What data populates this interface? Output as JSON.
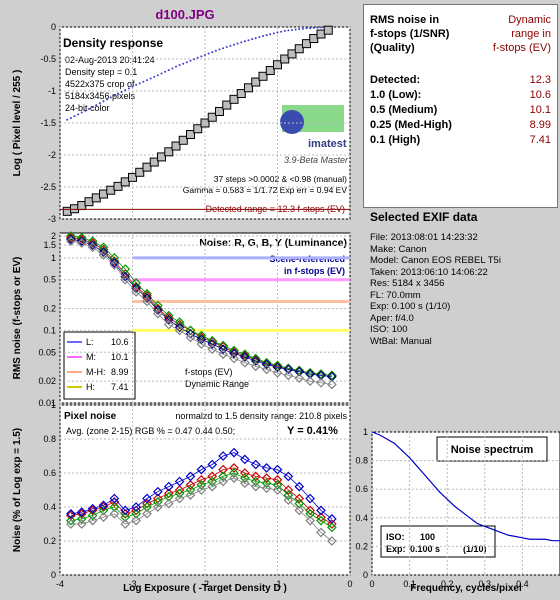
{
  "window_title": "d100.JPG",
  "colors": {
    "dark_red": "#8b0000",
    "blue": "#00008b",
    "red": "#cc0000",
    "green": "#009900",
    "gray": "#808080",
    "purple": "#800080"
  },
  "chart_data": [
    {
      "type": "line",
      "panel_title": "Density response",
      "ylabel": "Log ( Pixel level / 255 )",
      "xlim": [
        -4,
        0
      ],
      "ylim": [
        -3,
        0
      ],
      "yticks": [
        "0",
        "-0.5",
        "-1",
        "-1.5",
        "-2",
        "-2.5",
        "-3"
      ],
      "info_lines": [
        "02-Aug-2013 20:41:24",
        "Density step = 0.1",
        "4522x375 crop of",
        "5184x3456 pixels",
        "24-bit color"
      ],
      "logo_text": "imatest",
      "version_text": "3.9-Beta  Master",
      "stats_lines": [
        "37 steps >0.0002 & <0.98 (manual)",
        "Gamma = 0.583 = 1/1.72  Exp err = 0.94 EV"
      ],
      "detected_text": "Detected range = 12.3 f-stops (EV)",
      "series": [
        {
          "name": "density",
          "x": [
            -3.9,
            -3.8,
            -3.7,
            -3.6,
            -3.5,
            -3.4,
            -3.3,
            -3.2,
            -3.1,
            -3.0,
            -2.9,
            -2.8,
            -2.7,
            -2.6,
            -2.5,
            -2.4,
            -2.3,
            -2.2,
            -2.1,
            -2.0,
            -1.9,
            -1.8,
            -1.7,
            -1.6,
            -1.5,
            -1.4,
            -1.3,
            -1.2,
            -1.1,
            -1.0,
            -0.9,
            -0.8,
            -0.7,
            -0.6,
            -0.5,
            -0.4,
            -0.3
          ],
          "y": [
            -2.88,
            -2.84,
            -2.79,
            -2.73,
            -2.67,
            -2.61,
            -2.55,
            -2.49,
            -2.42,
            -2.35,
            -2.27,
            -2.19,
            -2.11,
            -2.03,
            -1.95,
            -1.86,
            -1.77,
            -1.68,
            -1.59,
            -1.5,
            -1.41,
            -1.32,
            -1.22,
            -1.13,
            -1.04,
            -0.95,
            -0.86,
            -0.77,
            -0.68,
            -0.59,
            -0.5,
            -0.42,
            -0.34,
            -0.26,
            -0.18,
            -0.11,
            -0.05
          ]
        },
        {
          "name": "reference",
          "x": [
            -3.9,
            -3.6,
            -3.3,
            -3.0,
            -2.7,
            -2.4,
            -2.1,
            -1.8,
            -1.5,
            -1.2,
            -0.9,
            -0.6,
            -0.3
          ],
          "y": [
            -1.45,
            -1.28,
            -1.1,
            -0.93,
            -0.78,
            -0.62,
            -0.48,
            -0.35,
            -0.24,
            -0.14,
            -0.06,
            -0.02,
            0
          ]
        }
      ]
    },
    {
      "type": "line",
      "panel_title": "Noise: R, G, B, Y (Luminance)",
      "ylabel": "RMS noise (f-stops or EV)",
      "xlim": [
        -4,
        0
      ],
      "yticks": [
        "2",
        "1.5",
        "1",
        "0.5",
        "0.2",
        "0.1",
        "0.05",
        "0.02",
        "0.01"
      ],
      "scene_label_1": "Scene-referenced",
      "scene_label_2": "in f-stops (EV)",
      "legend_items": [
        {
          "label": "L:",
          "value": "10.6",
          "color": "#6a6aff"
        },
        {
          "label": "M:",
          "value": "10.1",
          "color": "#ff66ff"
        },
        {
          "label": "M-H:",
          "value": "8.99",
          "color": "#ffaa80"
        },
        {
          "label": "H:",
          "value": "7.41",
          "color": "#cccc00"
        }
      ],
      "ref_lines": [
        {
          "value": 1.0,
          "color": "#aab0ff"
        },
        {
          "value": 0.5,
          "color": "#ff99ff"
        },
        {
          "value": 0.25,
          "color": "#ffc0a0"
        },
        {
          "value": 0.1,
          "color": "#ffff66"
        }
      ],
      "footer_1": "f-stops (EV)",
      "footer_2": "Dynamic Range",
      "series": [
        {
          "name": "R",
          "x": [
            -3.85,
            -3.7,
            -3.55,
            -3.4,
            -3.25,
            -3.1,
            -2.95,
            -2.8,
            -2.65,
            -2.5,
            -2.35,
            -2.2,
            -2.05,
            -1.9,
            -1.75,
            -1.6,
            -1.45,
            -1.3,
            -1.15,
            -1.0,
            -0.85,
            -0.7,
            -0.55,
            -0.4,
            -0.25
          ],
          "y": [
            1.9,
            1.8,
            1.6,
            1.3,
            0.9,
            0.6,
            0.4,
            0.3,
            0.2,
            0.15,
            0.12,
            0.1,
            0.08,
            0.07,
            0.06,
            0.05,
            0.045,
            0.04,
            0.035,
            0.032,
            0.03,
            0.028,
            0.026,
            0.025,
            0.024
          ]
        },
        {
          "name": "G",
          "x": [
            -3.85,
            -3.7,
            -3.55,
            -3.4,
            -3.25,
            -3.1,
            -2.95,
            -2.8,
            -2.65,
            -2.5,
            -2.35,
            -2.2,
            -2.05,
            -1.9,
            -1.75,
            -1.6,
            -1.45,
            -1.3,
            -1.15,
            -1.0,
            -0.85,
            -0.7,
            -0.55,
            -0.4,
            -0.25
          ],
          "y": [
            2.0,
            1.9,
            1.7,
            1.4,
            1.0,
            0.7,
            0.45,
            0.32,
            0.22,
            0.16,
            0.13,
            0.1,
            0.085,
            0.072,
            0.062,
            0.053,
            0.047,
            0.041,
            0.036,
            0.033,
            0.03,
            0.028,
            0.026,
            0.025,
            0.024
          ]
        },
        {
          "name": "B",
          "x": [
            -3.85,
            -3.7,
            -3.55,
            -3.4,
            -3.25,
            -3.1,
            -2.95,
            -2.8,
            -2.65,
            -2.5,
            -2.35,
            -2.2,
            -2.05,
            -1.9,
            -1.75,
            -1.6,
            -1.45,
            -1.3,
            -1.15,
            -1.0,
            -0.85,
            -0.7,
            -0.55,
            -0.4,
            -0.25
          ],
          "y": [
            1.8,
            1.7,
            1.5,
            1.2,
            0.85,
            0.55,
            0.38,
            0.28,
            0.19,
            0.14,
            0.11,
            0.09,
            0.075,
            0.065,
            0.055,
            0.048,
            0.043,
            0.038,
            0.034,
            0.031,
            0.029,
            0.027,
            0.025,
            0.024,
            0.023
          ]
        },
        {
          "name": "Y",
          "x": [
            -3.85,
            -3.7,
            -3.55,
            -3.4,
            -3.25,
            -3.1,
            -2.95,
            -2.8,
            -2.65,
            -2.5,
            -2.35,
            -2.2,
            -2.05,
            -1.9,
            -1.75,
            -1.6,
            -1.45,
            -1.3,
            -1.15,
            -1.0,
            -0.85,
            -0.7,
            -0.55,
            -0.4,
            -0.25
          ],
          "y": [
            1.7,
            1.6,
            1.4,
            1.1,
            0.8,
            0.5,
            0.34,
            0.25,
            0.17,
            0.12,
            0.1,
            0.08,
            0.065,
            0.055,
            0.047,
            0.041,
            0.036,
            0.032,
            0.029,
            0.026,
            0.024,
            0.022,
            0.02,
            0.019,
            0.018
          ]
        }
      ]
    },
    {
      "type": "line",
      "panel_title": "Pixel noise",
      "subtitle": "normalzd to 1.5 density range: 210.8 pixels",
      "avg_text": "Avg. (zone 2-15) RGB % = 0.47  0.44  0.50;",
      "y_text": "Y = 0.41%",
      "ylabel": "Noise (% of Log exp = 1.5)",
      "xlabel": "Log Exposure ( -Target Density D )",
      "xlim": [
        -4,
        0
      ],
      "ylim": [
        0,
        1
      ],
      "xticks": [
        "-4",
        "-3",
        "-2",
        "-1",
        "0"
      ],
      "yticks": [
        "0",
        "0.2",
        "0.4",
        "0.6",
        "0.8",
        "1"
      ],
      "series": [
        {
          "name": "R",
          "x": [
            -3.85,
            -3.7,
            -3.55,
            -3.4,
            -3.25,
            -3.1,
            -2.95,
            -2.8,
            -2.65,
            -2.5,
            -2.35,
            -2.2,
            -2.05,
            -1.9,
            -1.75,
            -1.6,
            -1.45,
            -1.3,
            -1.15,
            -1.0,
            -0.85,
            -0.7,
            -0.55,
            -0.4,
            -0.25
          ],
          "y": [
            0.35,
            0.36,
            0.38,
            0.4,
            0.43,
            0.36,
            0.38,
            0.42,
            0.45,
            0.48,
            0.5,
            0.53,
            0.56,
            0.58,
            0.62,
            0.63,
            0.6,
            0.58,
            0.57,
            0.56,
            0.5,
            0.45,
            0.38,
            0.34,
            0.3
          ]
        },
        {
          "name": "G",
          "x": [
            -3.85,
            -3.7,
            -3.55,
            -3.4,
            -3.25,
            -3.1,
            -2.95,
            -2.8,
            -2.65,
            -2.5,
            -2.35,
            -2.2,
            -2.05,
            -1.9,
            -1.75,
            -1.6,
            -1.45,
            -1.3,
            -1.15,
            -1.0,
            -0.85,
            -0.7,
            -0.55,
            -0.4,
            -0.25
          ],
          "y": [
            0.32,
            0.33,
            0.35,
            0.38,
            0.4,
            0.34,
            0.36,
            0.4,
            0.43,
            0.46,
            0.48,
            0.5,
            0.53,
            0.55,
            0.58,
            0.6,
            0.57,
            0.55,
            0.54,
            0.53,
            0.47,
            0.42,
            0.36,
            0.32,
            0.28
          ]
        },
        {
          "name": "B",
          "x": [
            -3.85,
            -3.7,
            -3.55,
            -3.4,
            -3.25,
            -3.1,
            -2.95,
            -2.8,
            -2.65,
            -2.5,
            -2.35,
            -2.2,
            -2.05,
            -1.9,
            -1.75,
            -1.6,
            -1.45,
            -1.3,
            -1.15,
            -1.0,
            -0.85,
            -0.7,
            -0.55,
            -0.4,
            -0.25
          ],
          "y": [
            0.36,
            0.37,
            0.39,
            0.41,
            0.45,
            0.38,
            0.4,
            0.45,
            0.49,
            0.52,
            0.55,
            0.58,
            0.62,
            0.65,
            0.7,
            0.72,
            0.68,
            0.65,
            0.63,
            0.62,
            0.58,
            0.52,
            0.45,
            0.38,
            0.33
          ]
        },
        {
          "name": "Y",
          "x": [
            -3.85,
            -3.7,
            -3.55,
            -3.4,
            -3.25,
            -3.1,
            -2.95,
            -2.8,
            -2.65,
            -2.5,
            -2.35,
            -2.2,
            -2.05,
            -1.9,
            -1.75,
            -1.6,
            -1.45,
            -1.3,
            -1.15,
            -1.0,
            -0.85,
            -0.7,
            -0.55,
            -0.4,
            -0.25
          ],
          "y": [
            0.3,
            0.3,
            0.32,
            0.34,
            0.36,
            0.3,
            0.32,
            0.36,
            0.4,
            0.42,
            0.45,
            0.47,
            0.5,
            0.52,
            0.55,
            0.57,
            0.54,
            0.52,
            0.51,
            0.5,
            0.44,
            0.38,
            0.32,
            0.25,
            0.2
          ]
        }
      ]
    },
    {
      "type": "line",
      "panel_title": "Noise spectrum",
      "xlabel": "Frequency, cycles/pixel",
      "xlim": [
        0,
        0.5
      ],
      "ylim": [
        0,
        1
      ],
      "xticks": [
        "0",
        "0.1",
        "0.2",
        "0.3",
        "0.4"
      ],
      "yticks": [
        "0",
        "0.2",
        "0.4",
        "0.6",
        "0.8",
        "1"
      ],
      "iso_label": "ISO:",
      "iso_value": "100",
      "exp_label": "Exp:",
      "exp_value": "0.100 s",
      "exp_frac": "(1/10)",
      "series": [
        {
          "name": "spectrum",
          "x": [
            0,
            0.02,
            0.04,
            0.06,
            0.08,
            0.1,
            0.12,
            0.14,
            0.16,
            0.18,
            0.2,
            0.22,
            0.24,
            0.26,
            0.28,
            0.3,
            0.32,
            0.34,
            0.36,
            0.38,
            0.4,
            0.42,
            0.44,
            0.46,
            0.48,
            0.5
          ],
          "y": [
            1.0,
            0.98,
            0.95,
            0.92,
            0.87,
            0.82,
            0.76,
            0.7,
            0.64,
            0.58,
            0.53,
            0.48,
            0.44,
            0.4,
            0.36,
            0.34,
            0.32,
            0.3,
            0.28,
            0.27,
            0.26,
            0.25,
            0.25,
            0.25,
            0.24,
            0.24
          ]
        }
      ]
    }
  ],
  "info": {
    "col1_head": [
      "RMS noise in",
      "f-stops (1/SNR)",
      "(Quality)"
    ],
    "col2_head": [
      "Dynamic",
      "range in",
      "f-stops (EV)"
    ],
    "rows": [
      {
        "label": "Detected:",
        "value": "12.3"
      },
      {
        "label": "1.0  (Low):",
        "value": "10.6"
      },
      {
        "label": "0.5  (Medium)",
        "value": "10.1"
      },
      {
        "label": "0.25 (Med-High)",
        "value": "8.99"
      },
      {
        "label": "0.1  (High)",
        "value": "7.41"
      }
    ]
  },
  "exif": {
    "title": "Selected EXIF data",
    "lines": [
      "File:  2013:08:01 14:23:32",
      "Make:  Canon",
      "Model: Canon EOS REBEL T5i",
      "Taken: 2013:06:10 14:06:22",
      "Res:   5184 x 3456",
      "FL:  70.0mm",
      "Exp:  0.100 s  (1/10)",
      "Aper:  f/4.0",
      "ISO:   100",
      "WtBal: Manual"
    ]
  }
}
